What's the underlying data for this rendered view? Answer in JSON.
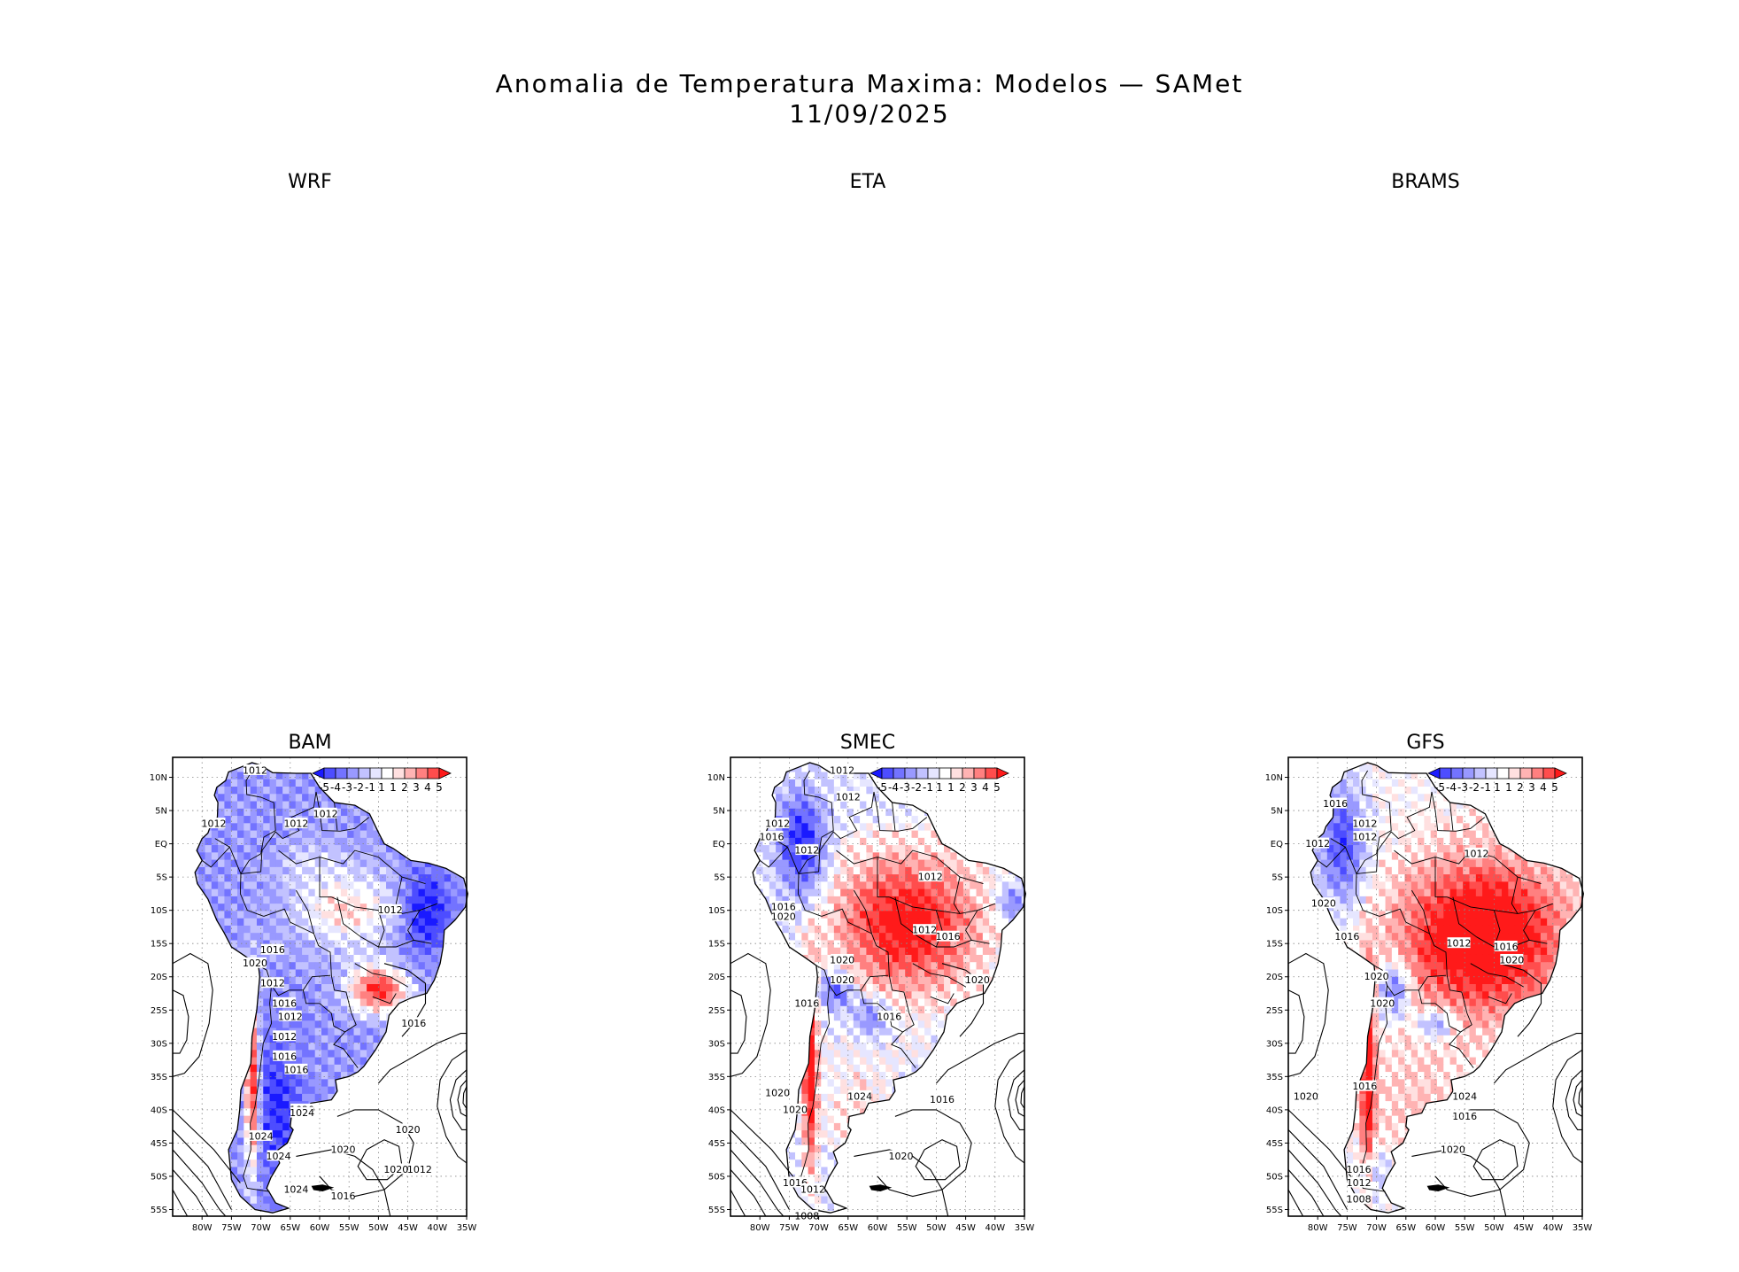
{
  "title": {
    "line1": "Anomalia de Temperatura Maxima: Modelos — SAMet",
    "line2": "11/09/2025"
  },
  "top_panels": [
    {
      "name": "WRF"
    },
    {
      "name": "ETA"
    },
    {
      "name": "BRAMS"
    }
  ],
  "map_panels": [
    {
      "name": "BAM",
      "pattern": "cold",
      "isobars": [
        {
          "text": "1012"
        },
        {
          "text": "1012"
        },
        {
          "text": "1012"
        },
        {
          "text": "1012"
        },
        {
          "text": "1016"
        },
        {
          "text": "1020"
        },
        {
          "text": "1012"
        },
        {
          "text": "1016"
        },
        {
          "text": "1012"
        },
        {
          "text": "1012"
        },
        {
          "text": "1016"
        },
        {
          "text": "1016"
        },
        {
          "text": "1020"
        },
        {
          "text": "1024"
        },
        {
          "text": "1024"
        },
        {
          "text": "1024"
        },
        {
          "text": "1024"
        },
        {
          "text": "1020"
        },
        {
          "text": "1020"
        },
        {
          "text": "1016"
        },
        {
          "text": "1012"
        },
        {
          "text": "1020"
        },
        {
          "text": "1016"
        },
        {
          "text": "1012"
        }
      ]
    },
    {
      "name": "SMEC",
      "pattern": "warm",
      "isobars": [
        {
          "text": "1012"
        },
        {
          "text": "1012"
        },
        {
          "text": "1012"
        },
        {
          "text": "1016"
        },
        {
          "text": "1012"
        },
        {
          "text": "1016"
        },
        {
          "text": "1020"
        },
        {
          "text": "1012"
        },
        {
          "text": "1012"
        },
        {
          "text": "1016"
        },
        {
          "text": "1020"
        },
        {
          "text": "1020"
        },
        {
          "text": "1020"
        },
        {
          "text": "1016"
        },
        {
          "text": "1016"
        },
        {
          "text": "1024"
        },
        {
          "text": "1020"
        },
        {
          "text": "1020"
        },
        {
          "text": "1016"
        },
        {
          "text": "1020"
        },
        {
          "text": "1016"
        },
        {
          "text": "1012"
        },
        {
          "text": "1008"
        }
      ]
    },
    {
      "name": "GFS",
      "pattern": "hot",
      "isobars": [
        {
          "text": "1016"
        },
        {
          "text": "1012"
        },
        {
          "text": "1012"
        },
        {
          "text": "1012"
        },
        {
          "text": "1012"
        },
        {
          "text": "1020"
        },
        {
          "text": "1016"
        },
        {
          "text": "1012"
        },
        {
          "text": "1016"
        },
        {
          "text": "1020"
        },
        {
          "text": "1020"
        },
        {
          "text": "1020"
        },
        {
          "text": "1016"
        },
        {
          "text": "1024"
        },
        {
          "text": "1020"
        },
        {
          "text": "1016"
        },
        {
          "text": "1020"
        },
        {
          "text": "1016"
        },
        {
          "text": "1012"
        },
        {
          "text": "1008"
        }
      ]
    }
  ],
  "lat_ticks": [
    "10N",
    "5N",
    "EQ",
    "5S",
    "10S",
    "15S",
    "20S",
    "25S",
    "30S",
    "35S",
    "40S",
    "45S",
    "50S",
    "55S"
  ],
  "lon_ticks": [
    "80W",
    "75W",
    "70W",
    "65W",
    "60W",
    "55W",
    "50W",
    "45W",
    "40W",
    "35W"
  ],
  "colorbar": {
    "labels": [
      "-5",
      "-4",
      "-3",
      "-2",
      "-1",
      "1",
      "1",
      "2",
      "3",
      "4",
      "5"
    ],
    "colors": [
      "#1a1aff",
      "#4d4dff",
      "#7373ff",
      "#9999ff",
      "#c2c2ff",
      "#e6e6ff",
      "#ffffff",
      "#ffe0e0",
      "#ffb3b3",
      "#ff8080",
      "#ff4d4d",
      "#ff1a1a"
    ]
  }
}
